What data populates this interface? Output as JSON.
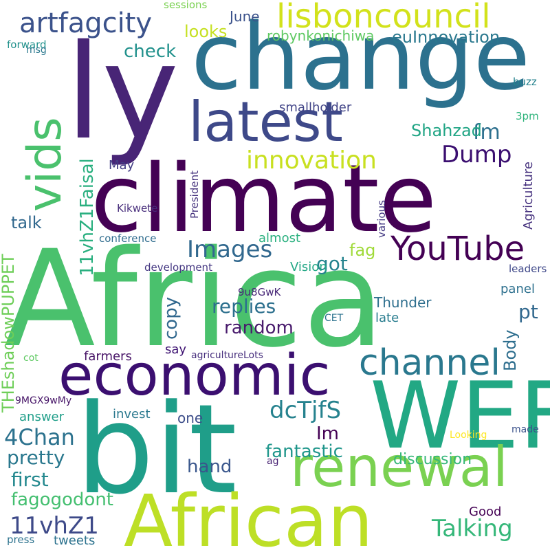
{
  "words": [
    {
      "text": "Africa",
      "color": "#4ac16d"
    },
    {
      "text": "climate",
      "color": "#440154"
    },
    {
      "text": "ly",
      "color": "#482576"
    },
    {
      "text": "change",
      "color": "#2c718e"
    },
    {
      "text": "WEF",
      "color": "#22a884"
    },
    {
      "text": "bit",
      "color": "#1f9e89"
    },
    {
      "text": "economic",
      "color": "#3b0f70"
    },
    {
      "text": "African",
      "color": "#bddf26"
    },
    {
      "text": "renewal",
      "color": "#7ad151"
    },
    {
      "text": "latest",
      "color": "#3e4989"
    },
    {
      "text": "vids",
      "color": "#4ac16d"
    },
    {
      "text": "lisboncouncil",
      "color": "#d2e21b"
    },
    {
      "text": "YouTube",
      "color": "#440154"
    },
    {
      "text": "channel",
      "color": "#2a788e"
    },
    {
      "text": "artfagcity",
      "color": "#3b528b"
    },
    {
      "text": "innovation",
      "color": "#c8e020"
    },
    {
      "text": "Images",
      "color": "#31688e"
    },
    {
      "text": "Dump",
      "color": "#3b0f70"
    },
    {
      "text": "Talking",
      "color": "#35b779"
    },
    {
      "text": "dcTjfS",
      "color": "#26828e"
    },
    {
      "text": "4Chan",
      "color": "#2c728e"
    },
    {
      "text": "11vhZ1",
      "color": "#3e4a89"
    },
    {
      "text": "fm",
      "color": "#2d708e"
    },
    {
      "text": "euInnovation",
      "color": "#2a788e"
    },
    {
      "text": "robynkonichiwa",
      "color": "#5ec962"
    },
    {
      "text": "looks",
      "color": "#c5e021"
    },
    {
      "text": "check",
      "color": "#21918c"
    },
    {
      "text": "June",
      "color": "#3b528b"
    },
    {
      "text": "smallholder",
      "color": "#414487"
    },
    {
      "text": "Shahzad",
      "color": "#21a585"
    },
    {
      "text": "11vhZ1Faisal",
      "color": "#29af7f"
    },
    {
      "text": "May",
      "color": "#433e85"
    },
    {
      "text": "talk",
      "color": "#31688e"
    },
    {
      "text": "THEshadowPUPPET",
      "color": "#6ece58"
    },
    {
      "text": "replies",
      "color": "#2d708e"
    },
    {
      "text": "random",
      "color": "#481a6c"
    },
    {
      "text": "copy",
      "color": "#31688e"
    },
    {
      "text": "got",
      "color": "#25838e"
    },
    {
      "text": "pt",
      "color": "#31688e"
    },
    {
      "text": "fag",
      "color": "#a0da39"
    },
    {
      "text": "Body",
      "color": "#2e6e8e"
    },
    {
      "text": "Im",
      "color": "#440154"
    },
    {
      "text": "fantastic",
      "color": "#1f968b"
    },
    {
      "text": "pretty",
      "color": "#2a788e"
    },
    {
      "text": "first",
      "color": "#23888e"
    },
    {
      "text": "fagogodont",
      "color": "#44bf70"
    },
    {
      "text": "hand",
      "color": "#39568c"
    },
    {
      "text": "discussion",
      "color": "#35b779"
    },
    {
      "text": "Thunder",
      "color": "#2e6f8e"
    },
    {
      "text": "late",
      "color": "#287c8e"
    },
    {
      "text": "panel",
      "color": "#2d708e"
    },
    {
      "text": "Vision",
      "color": "#22a785"
    },
    {
      "text": "almost",
      "color": "#2ab07f"
    },
    {
      "text": "answer",
      "color": "#1f9e89"
    },
    {
      "text": "invest",
      "color": "#2a788e"
    },
    {
      "text": "one",
      "color": "#3d4e8a"
    },
    {
      "text": "say",
      "color": "#3b0f70"
    },
    {
      "text": "farmers",
      "color": "#481467"
    },
    {
      "text": "Good",
      "color": "#440154"
    },
    {
      "text": "tweets",
      "color": "#2c728e"
    },
    {
      "text": "Agriculture",
      "color": "#46327e"
    },
    {
      "text": "President",
      "color": "#46337e"
    },
    {
      "text": "various",
      "color": "#443a83"
    },
    {
      "text": "Kikwete",
      "color": "#472d7b"
    },
    {
      "text": "conference",
      "color": "#2f6c8e"
    },
    {
      "text": "development",
      "color": "#453882"
    },
    {
      "text": "leaders",
      "color": "#3f4889"
    },
    {
      "text": "agricultureLots",
      "color": "#472f7d"
    },
    {
      "text": "9u8GwK",
      "color": "#482878"
    },
    {
      "text": "CET",
      "color": "#2c728e"
    },
    {
      "text": "9MGX9wMy",
      "color": "#481769"
    },
    {
      "text": "Looking",
      "color": "#fde725"
    },
    {
      "text": "made",
      "color": "#3b528b"
    },
    {
      "text": "ag",
      "color": "#482374"
    },
    {
      "text": "cot",
      "color": "#5ec962"
    },
    {
      "text": "press",
      "color": "#2c728e"
    },
    {
      "text": "sessions",
      "color": "#7ad151"
    },
    {
      "text": "forward",
      "color": "#21918c"
    },
    {
      "text": "msg",
      "color": "#2a788e"
    },
    {
      "text": "buzz",
      "color": "#26828e"
    },
    {
      "text": "3pm",
      "color": "#2fb47c"
    }
  ]
}
